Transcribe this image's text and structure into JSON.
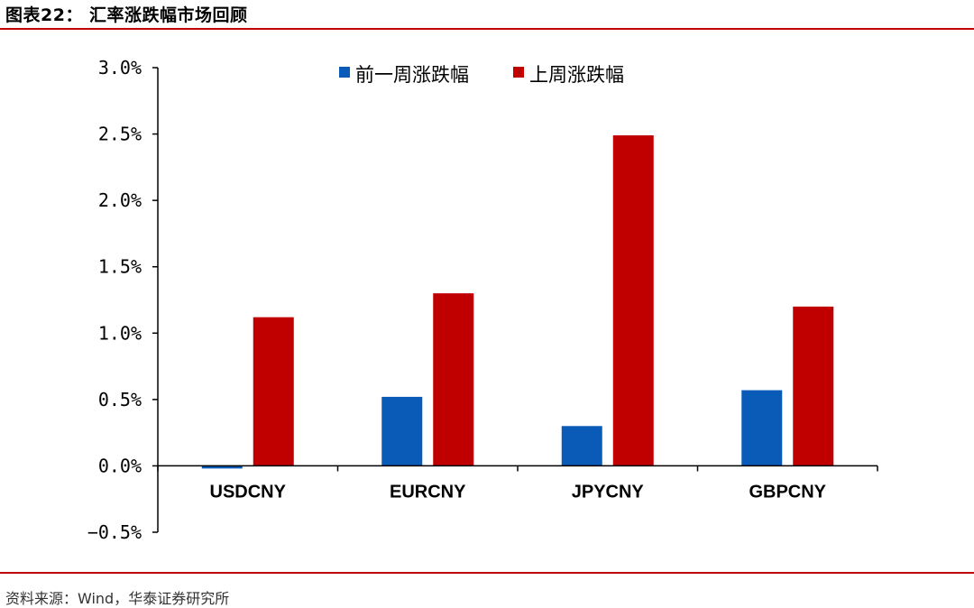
{
  "header": {
    "title": "图表22： 汇率涨跌幅市场回顾"
  },
  "footer": {
    "source": "资料来源：Wind，华泰证券研究所"
  },
  "colors": {
    "rule": "#c00000",
    "prev_week": "#0a5ab8",
    "last_week": "#c00000",
    "axis": "#000000"
  },
  "chart_data": {
    "type": "bar",
    "title": "",
    "xlabel": "",
    "ylabel": "",
    "categories": [
      "USDCNY",
      "EURCNY",
      "JPYCNY",
      "GBPCNY"
    ],
    "series": [
      {
        "name": "前一周涨跌幅",
        "color": "#0a5ab8",
        "values": [
          -0.02,
          0.52,
          0.3,
          0.57
        ]
      },
      {
        "name": "上周涨跌幅",
        "color": "#c00000",
        "values": [
          1.12,
          1.3,
          2.49,
          1.2
        ]
      }
    ],
    "ylim": [
      -0.5,
      3.0
    ],
    "yticks": [
      -0.5,
      0.0,
      0.5,
      1.0,
      1.5,
      2.0,
      2.5,
      3.0
    ],
    "ytick_labels": [
      "−0.5%",
      "0.0%",
      "0.5%",
      "1.0%",
      "1.5%",
      "2.0%",
      "2.5%",
      "3.0%"
    ],
    "grid": false,
    "legend_position": "top-center"
  }
}
